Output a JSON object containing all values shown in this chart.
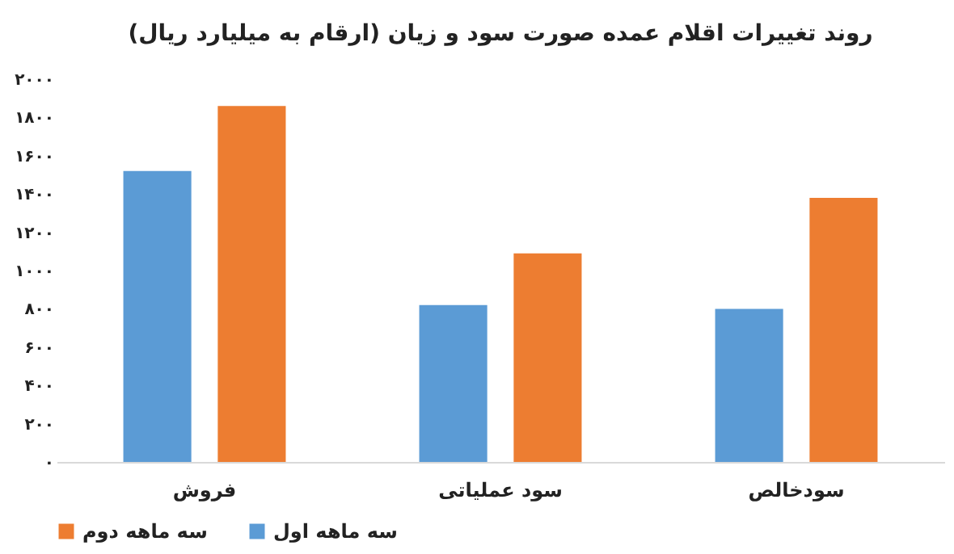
{
  "chart_data": {
    "type": "bar",
    "title": "روند تغییرات اقلام عمده صورت سود و زیان (ارقام به میلیارد ریال)",
    "categories": [
      "فروش",
      "سود عملیاتی",
      "سودخالص"
    ],
    "series": [
      {
        "name": "سه ماهه اول",
        "color": "#5b9bd5",
        "values": [
          1520,
          820,
          800
        ]
      },
      {
        "name": "سه ماهه دوم",
        "color": "#ed7d31",
        "values": [
          1860,
          1090,
          1380
        ]
      }
    ],
    "ylim": [
      0,
      2000
    ],
    "yticks": [
      {
        "value": 0,
        "label": "۰"
      },
      {
        "value": 200,
        "label": "۲۰۰"
      },
      {
        "value": 400,
        "label": "۴۰۰"
      },
      {
        "value": 600,
        "label": "۶۰۰"
      },
      {
        "value": 800,
        "label": "۸۰۰"
      },
      {
        "value": 1000,
        "label": "۱۰۰۰"
      },
      {
        "value": 1200,
        "label": "۱۲۰۰"
      },
      {
        "value": 1400,
        "label": "۱۴۰۰"
      },
      {
        "value": 1600,
        "label": "۱۶۰۰"
      },
      {
        "value": 1800,
        "label": "۱۸۰۰"
      },
      {
        "value": 2000,
        "label": "۲۰۰۰"
      }
    ],
    "grid": false,
    "legend": "bottom"
  }
}
